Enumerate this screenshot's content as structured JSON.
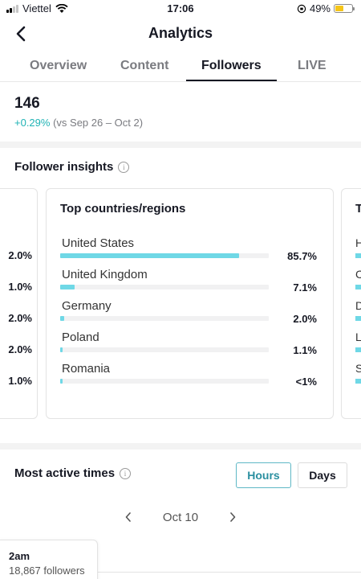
{
  "status_bar": {
    "carrier": "Viettel",
    "time": "17:06",
    "battery_pct": "49%",
    "battery_level": 0.49
  },
  "header": {
    "title": "Analytics",
    "back_icon": "chevron-left-icon"
  },
  "tabs": [
    {
      "label": "Overview",
      "active": false
    },
    {
      "label": "Content",
      "active": false
    },
    {
      "label": "Followers",
      "active": true
    },
    {
      "label": "LIVE",
      "active": false
    }
  ],
  "followers_summary": {
    "count": "146",
    "change_pct": "+0.29%",
    "change_period": "(vs Sep 26 – Oct 2)"
  },
  "follower_insights": {
    "title": "Follower insights",
    "left_card_pcts": [
      "2.0%",
      "1.0%",
      "2.0%",
      "2.0%",
      "1.0%"
    ],
    "top_regions": {
      "title": "Top countries/regions",
      "rows": [
        {
          "name": "United States",
          "pct": "85.7%",
          "value": 0.857
        },
        {
          "name": "United Kingdom",
          "pct": "7.1%",
          "value": 0.071
        },
        {
          "name": "Germany",
          "pct": "2.0%",
          "value": 0.02
        },
        {
          "name": "Poland",
          "pct": "1.1%",
          "value": 0.011
        },
        {
          "name": "Romania",
          "pct": "<1%",
          "value": 0.005
        }
      ]
    },
    "right_card": {
      "title_initial": "T",
      "row_initials": [
        "H",
        "C",
        "D",
        "L",
        "S"
      ]
    }
  },
  "most_active_times": {
    "title": "Most active times",
    "toggle_hours": "Hours",
    "toggle_days": "Days",
    "selected_toggle": "Hours",
    "date_label": "Oct 10",
    "tooltip_time": "2am",
    "tooltip_value": "18,867 followers"
  },
  "colors": {
    "accent_teal": "#20b3b5",
    "bar_fill": "#6fd8e6",
    "text_primary": "#161823",
    "text_secondary": "#7a7b80"
  }
}
